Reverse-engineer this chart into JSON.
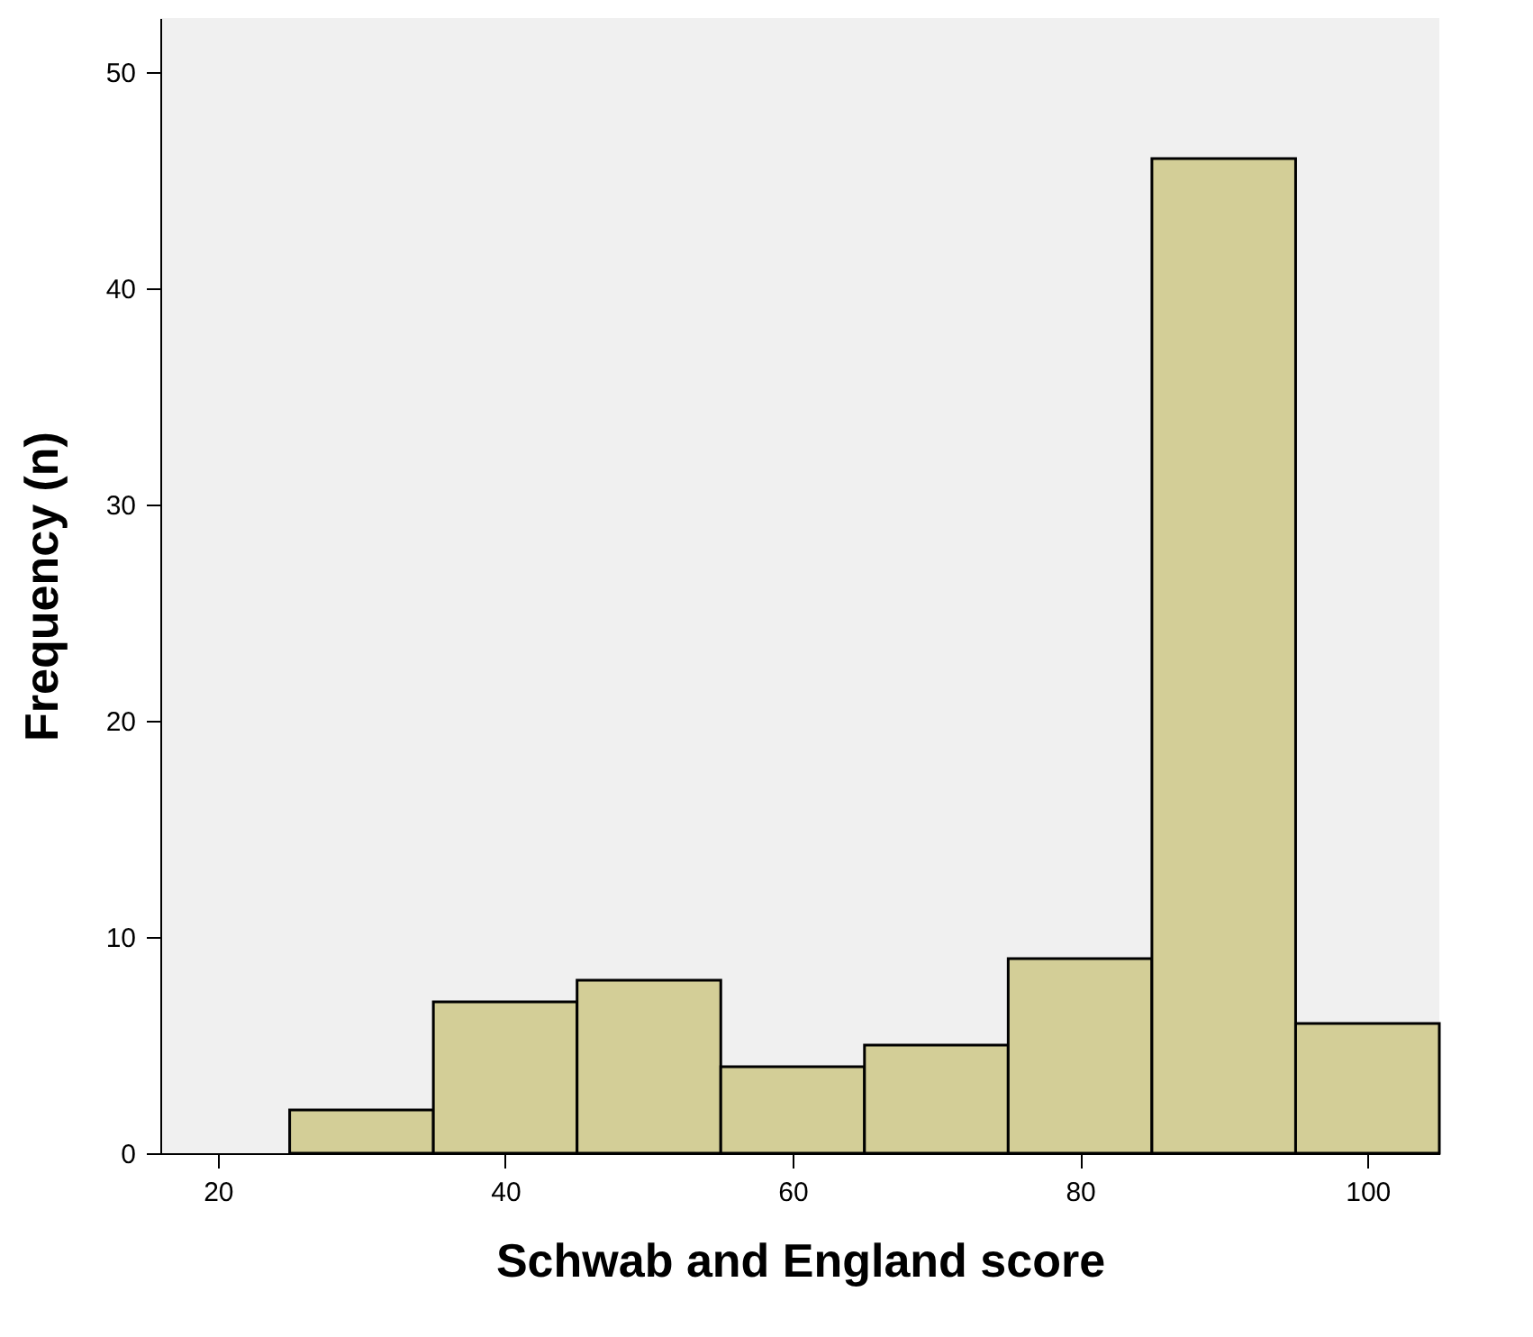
{
  "chart_data": {
    "type": "histogram",
    "xlabel": "Schwab and England score",
    "ylabel": "Frequency (n)",
    "bins": [
      25,
      35,
      45,
      55,
      65,
      75,
      85,
      95,
      105
    ],
    "values": [
      2,
      7,
      8,
      4,
      5,
      9,
      46,
      6
    ],
    "color": "#d3ce97",
    "xlim": [
      16,
      105
    ],
    "xticks": [
      20,
      40,
      60,
      80,
      100
    ],
    "ylim": [
      0,
      52.5
    ],
    "yticks": [
      0,
      10,
      20,
      30,
      40,
      50
    ],
    "grid": false
  }
}
